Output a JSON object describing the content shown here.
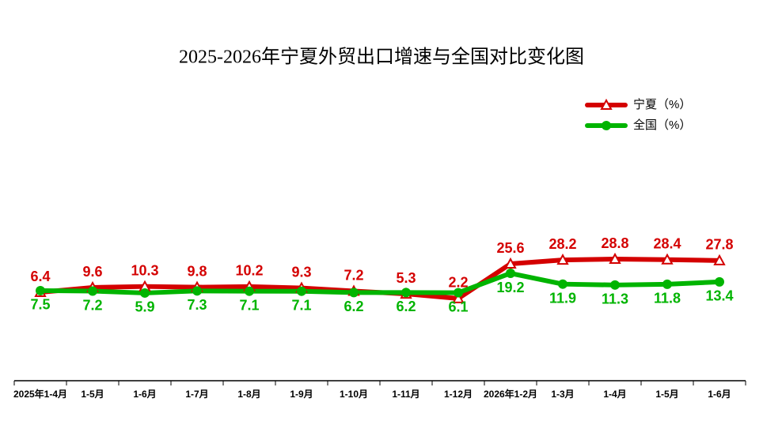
{
  "chart_data": {
    "type": "line",
    "title": "2025-2026年宁夏外贸出口增速与全国对比变化图",
    "categories": [
      "2025年1-4月",
      "1-5月",
      "1-6月",
      "1-7月",
      "1-8月",
      "1-9月",
      "1-10月",
      "1-11月",
      "1-12月",
      "2026年1-2月",
      "1-3月",
      "1-4月",
      "1-5月",
      "1-6月"
    ],
    "series": [
      {
        "name": "宁夏（%）",
        "color": "#d40000",
        "marker": "triangle",
        "values": [
          6.4,
          9.6,
          10.3,
          9.8,
          10.2,
          9.3,
          7.2,
          5.3,
          2.2,
          25.6,
          28.2,
          28.8,
          28.4,
          27.8
        ]
      },
      {
        "name": "全国（%）",
        "color": "#00b400",
        "marker": "circle",
        "values": [
          7.5,
          7.2,
          5.9,
          7.3,
          7.1,
          7.1,
          6.2,
          6.2,
          6.1,
          19.2,
          11.9,
          11.3,
          11.8,
          13.4
        ]
      }
    ],
    "legend": "top-right"
  }
}
